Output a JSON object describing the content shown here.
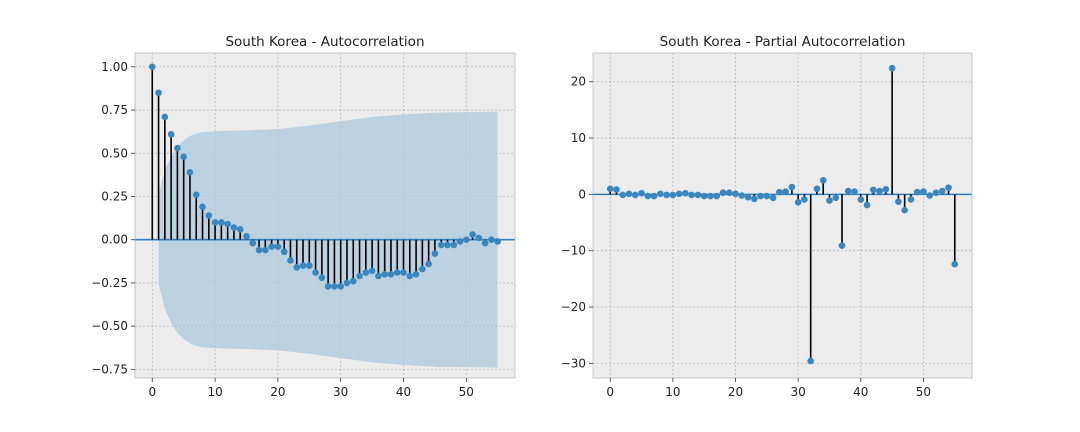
{
  "chart_data": [
    {
      "type": "stem",
      "title": "South Korea - Autocorrelation",
      "xlim": [
        -2.75,
        57.75
      ],
      "ylim": [
        -0.8,
        1.08
      ],
      "xticks": [
        0,
        10,
        20,
        30,
        40,
        50
      ],
      "yticks": [
        1.0,
        0.75,
        0.5,
        0.25,
        0.0,
        -0.25,
        -0.5,
        -0.75
      ],
      "ytick_labels": [
        "1.00",
        "0.75",
        "0.50",
        "0.25",
        "0.00",
        "−0.25",
        "−0.50",
        "−0.75"
      ],
      "xtick_labels": [
        "0",
        "10",
        "20",
        "30",
        "40",
        "50"
      ],
      "grid": true,
      "confidence_band": {
        "lags": [
          1,
          2,
          3,
          4,
          5,
          6,
          7,
          8,
          9,
          10,
          12,
          15,
          20,
          25,
          30,
          35,
          40,
          45,
          50,
          55
        ],
        "upper": [
          0.26,
          0.4,
          0.48,
          0.54,
          0.575,
          0.6,
          0.615,
          0.622,
          0.625,
          0.628,
          0.63,
          0.633,
          0.64,
          0.66,
          0.685,
          0.71,
          0.725,
          0.735,
          0.738,
          0.74
        ]
      },
      "x": [
        0,
        1,
        2,
        3,
        4,
        5,
        6,
        7,
        8,
        9,
        10,
        11,
        12,
        13,
        14,
        15,
        16,
        17,
        18,
        19,
        20,
        21,
        22,
        23,
        24,
        25,
        26,
        27,
        28,
        29,
        30,
        31,
        32,
        33,
        34,
        35,
        36,
        37,
        38,
        39,
        40,
        41,
        42,
        43,
        44,
        45,
        46,
        47,
        48,
        49,
        50,
        51,
        52,
        53,
        54,
        55
      ],
      "values": [
        1.0,
        0.85,
        0.71,
        0.61,
        0.53,
        0.48,
        0.39,
        0.26,
        0.19,
        0.14,
        0.1,
        0.1,
        0.09,
        0.07,
        0.06,
        0.02,
        -0.02,
        -0.06,
        -0.06,
        -0.04,
        -0.04,
        -0.07,
        -0.12,
        -0.16,
        -0.15,
        -0.15,
        -0.19,
        -0.22,
        -0.27,
        -0.27,
        -0.27,
        -0.25,
        -0.24,
        -0.21,
        -0.19,
        -0.18,
        -0.21,
        -0.2,
        -0.2,
        -0.19,
        -0.19,
        -0.21,
        -0.2,
        -0.17,
        -0.14,
        -0.08,
        -0.03,
        -0.03,
        -0.03,
        -0.01,
        0.0,
        0.03,
        0.01,
        -0.02,
        0.0,
        -0.01
      ]
    },
    {
      "type": "stem",
      "title": "South Korea - Partial Autocorrelation",
      "xlim": [
        -2.75,
        57.75
      ],
      "ylim": [
        -32.6,
        25.1
      ],
      "xticks": [
        0,
        10,
        20,
        30,
        40,
        50
      ],
      "yticks": [
        20,
        10,
        0,
        -10,
        -20,
        -30
      ],
      "ytick_labels": [
        "20",
        "10",
        "0",
        "−10",
        "−20",
        "−30"
      ],
      "xtick_labels": [
        "0",
        "10",
        "20",
        "30",
        "40",
        "50"
      ],
      "grid": true,
      "x": [
        0,
        1,
        2,
        3,
        4,
        5,
        6,
        7,
        8,
        9,
        10,
        11,
        12,
        13,
        14,
        15,
        16,
        17,
        18,
        19,
        20,
        21,
        22,
        23,
        24,
        25,
        26,
        27,
        28,
        29,
        30,
        31,
        32,
        33,
        34,
        35,
        36,
        37,
        38,
        39,
        40,
        41,
        42,
        43,
        44,
        45,
        46,
        47,
        48,
        49,
        50,
        51,
        52,
        53,
        54,
        55
      ],
      "values": [
        1.0,
        0.85,
        -0.1,
        0.1,
        -0.1,
        0.2,
        -0.3,
        -0.3,
        0.1,
        -0.1,
        -0.1,
        0.1,
        0.2,
        -0.1,
        -0.1,
        -0.3,
        -0.3,
        -0.3,
        0.3,
        0.3,
        0.1,
        -0.2,
        -0.5,
        -0.8,
        -0.3,
        -0.3,
        -0.6,
        0.4,
        0.5,
        1.3,
        -1.4,
        -0.9,
        -29.6,
        1.0,
        2.5,
        -1.1,
        -0.6,
        -9.1,
        0.6,
        0.5,
        -0.9,
        -1.9,
        0.8,
        0.6,
        0.9,
        22.4,
        -1.3,
        -2.8,
        -0.9,
        0.4,
        0.5,
        -0.2,
        0.3,
        0.6,
        1.2,
        -12.4
      ]
    }
  ]
}
